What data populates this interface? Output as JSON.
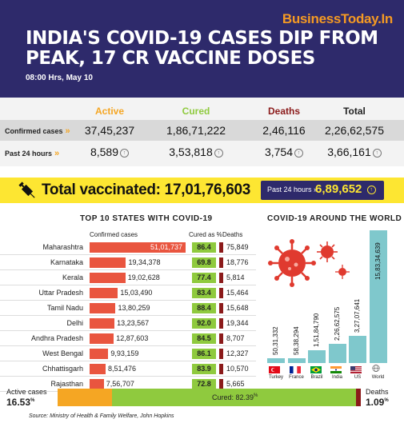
{
  "header": {
    "brand": "BusinessToday.In",
    "title": "INDIA'S COVID-19 CASES DIP FROM PEAK, 17 CR VACCINE DOSES",
    "timestamp": "08:00 Hrs, May 10",
    "bg_color": "#2e2a6b",
    "brand_color": "#f59a23"
  },
  "summary": {
    "columns": [
      {
        "label": "Active",
        "color": "#f5a623"
      },
      {
        "label": "Cured",
        "color": "#8fca3e"
      },
      {
        "label": "Deaths",
        "color": "#8b1a1a"
      },
      {
        "label": "Total",
        "color": "#222222"
      }
    ],
    "confirmed_label": "Confirmed cases",
    "last24_label": "Past 24 hours",
    "confirmed": [
      "37,45,237",
      "1,86,71,222",
      "2,46,116",
      "2,26,62,575"
    ],
    "last24": [
      "8,589",
      "3,53,818",
      "3,754",
      "3,66,161"
    ]
  },
  "vaccination": {
    "label": "Total vaccinated: 17,01,76,603",
    "past24_label": "Past 24 hours",
    "past24_value": "6,89,652"
  },
  "states_section": {
    "title": "TOP 10 STATES WITH COVID-19",
    "col_confirmed": "Confirmed cases",
    "col_cured": "Cured as %",
    "col_deaths": "Deaths"
  },
  "world_section": {
    "title": "COVID-19 AROUND THE WORLD"
  },
  "chart_data": [
    {
      "type": "bar",
      "orientation": "horizontal",
      "categories": [
        "Maharashtra",
        "Karnataka",
        "Kerala",
        "Uttar Pradesh",
        "Tamil Nadu",
        "Delhi",
        "Andhra Pradesh",
        "West Bengal",
        "Chhattisgarh",
        "Rajasthan"
      ],
      "values": [
        5101737,
        1934378,
        1902628,
        1503490,
        1380259,
        1323567,
        1287603,
        993159,
        851476,
        756707
      ],
      "value_labels": [
        "51,01,737",
        "19,34,378",
        "19,02,628",
        "15,03,490",
        "13,80,259",
        "13,23,567",
        "12,87,603",
        "9,93,159",
        "8,51,476",
        "7,56,707"
      ],
      "cured_pct": [
        "86.4",
        "69.8",
        "77.4",
        "83.4",
        "88.4",
        "92.0",
        "84.5",
        "86.1",
        "83.9",
        "72.8"
      ],
      "deaths": [
        "75,849",
        "18,776",
        "5,814",
        "15,464",
        "15,648",
        "19,344",
        "8,707",
        "12,327",
        "10,570",
        "5,665"
      ],
      "bar_color": "#e9553f"
    },
    {
      "type": "bar",
      "orientation": "vertical",
      "categories": [
        "Turkey",
        "France",
        "Brazil",
        "India",
        "US",
        "World"
      ],
      "values": [
        5031332,
        5838294,
        15184790,
        22662575,
        32707641,
        158334639
      ],
      "value_labels": [
        "50,31,332",
        "58,38,294",
        "1,51,84,790",
        "2,26,62,575",
        "3,27,07,641",
        "15,83,34,639"
      ],
      "bar_color": "#7fc8cc"
    }
  ],
  "outcome_bar": {
    "active_label": "Active cases",
    "active_value": "16.53",
    "active_unit": "%",
    "cured_label": "Cured: 82.39",
    "cured_unit": "%",
    "deaths_label": "Deaths",
    "deaths_value": "1.09",
    "deaths_unit": "%"
  },
  "source": "Source: Ministry of Health & Family Welfare, John Hopkins"
}
